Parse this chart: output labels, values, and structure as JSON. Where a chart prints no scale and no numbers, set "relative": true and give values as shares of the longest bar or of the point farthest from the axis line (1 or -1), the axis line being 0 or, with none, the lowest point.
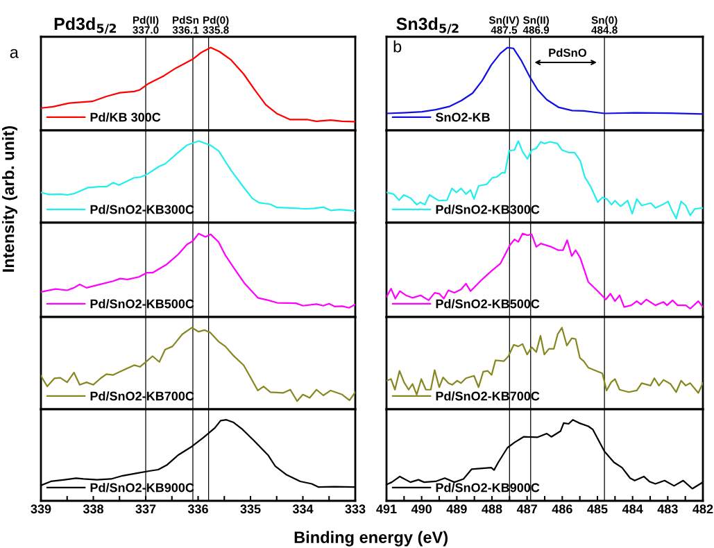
{
  "chart_data": [
    {
      "type": "line",
      "relative": true,
      "title": "Pd3d$_{5/2}$",
      "annotations": [
        "a"
      ],
      "legend": "bottom left",
      "tick_labels": false,
      "xlim": [
        339,
        333
      ],
      "x": [
        339.0,
        338.77,
        338.46,
        338.02,
        337.75,
        337.49,
        337.22,
        337.11,
        336.96,
        336.65,
        336.43,
        336.25,
        336.1,
        335.94,
        335.76,
        335.59,
        335.37,
        335.13,
        334.93,
        334.71,
        334.49,
        334.24,
        333.91,
        333.74,
        333.47,
        333.25,
        333.0
      ],
      "series": [
        {
          "name": "Pd/KB 300C",
          "color": "#ff0000",
          "values": [
            0.27,
            0.285,
            0.33,
            0.35,
            0.41,
            0.455,
            0.47,
            0.49,
            0.56,
            0.66,
            0.75,
            0.81,
            0.86,
            0.94,
            1.0,
            0.95,
            0.85,
            0.68,
            0.5,
            0.31,
            0.2,
            0.13,
            0.13,
            0.11,
            0.125,
            0.11,
            0.105
          ]
        }
      ],
      "ref_lines": [
        {
          "axis": "x",
          "value": 337.0,
          "label": "Pd(II)\n337.0",
          "color": "#000000"
        },
        {
          "axis": "x",
          "value": 336.1,
          "label": "PdSn\n336.1",
          "color": "#000000"
        },
        {
          "axis": "x",
          "value": 335.8,
          "label": "Pd(0)\n335.8",
          "color": "#000000"
        }
      ]
    },
    {
      "type": "line",
      "relative": true,
      "legend": "bottom left",
      "tick_labels": false,
      "xlim": [
        339,
        333
      ],
      "x": [
        339.0,
        338.85,
        338.63,
        338.5,
        338.37,
        338.1,
        337.88,
        337.75,
        337.62,
        337.51,
        337.22,
        337.09,
        336.98,
        336.74,
        336.63,
        336.38,
        336.21,
        335.99,
        335.77,
        335.61,
        335.37,
        335.15,
        334.97,
        334.84,
        334.62,
        334.49,
        334.22,
        333.96,
        333.78,
        333.61,
        333.47,
        333.3,
        333.0
      ],
      "series": [
        {
          "name": "Pd/SnO2-KB300C",
          "color": "#22eeee",
          "values": [
            0.37,
            0.345,
            0.35,
            0.34,
            0.355,
            0.43,
            0.44,
            0.44,
            0.49,
            0.46,
            0.55,
            0.56,
            0.59,
            0.69,
            0.72,
            0.86,
            0.95,
            1.0,
            0.95,
            0.88,
            0.64,
            0.45,
            0.3,
            0.245,
            0.225,
            0.185,
            0.18,
            0.17,
            0.175,
            0.19,
            0.15,
            0.16,
            0.145
          ]
        }
      ],
      "ref_lines": [
        {
          "axis": "x",
          "value": 337.0,
          "color": "#000000"
        },
        {
          "axis": "x",
          "value": 336.1,
          "color": "#000000"
        },
        {
          "axis": "x",
          "value": 335.8,
          "color": "#000000"
        }
      ]
    },
    {
      "type": "line",
      "relative": true,
      "ylabel": "Intensity (arb. unit)",
      "legend": "bottom left",
      "tick_labels": false,
      "xlim": [
        339,
        333
      ],
      "x": [
        339.0,
        338.72,
        338.5,
        338.37,
        338.26,
        338.13,
        337.88,
        337.62,
        337.49,
        337.35,
        337.13,
        336.98,
        336.87,
        336.6,
        336.38,
        336.21,
        336.1,
        335.99,
        335.86,
        335.76,
        335.61,
        335.48,
        335.33,
        335.11,
        334.86,
        334.66,
        334.49,
        334.13,
        334.0,
        333.74,
        333.61,
        333.5,
        333.39,
        333.25,
        333.12,
        333.0
      ],
      "series": [
        {
          "name": "Pd/SnO2-KB500C",
          "color": "#ff00ff",
          "values": [
            0.3,
            0.335,
            0.32,
            0.35,
            0.39,
            0.35,
            0.39,
            0.43,
            0.46,
            0.45,
            0.48,
            0.53,
            0.53,
            0.63,
            0.75,
            0.87,
            0.91,
            1.0,
            0.96,
            0.99,
            0.9,
            0.74,
            0.6,
            0.4,
            0.23,
            0.2,
            0.17,
            0.165,
            0.135,
            0.155,
            0.135,
            0.16,
            0.125,
            0.13,
            0.11,
            0.15
          ]
        }
      ],
      "ref_lines": [
        {
          "axis": "x",
          "value": 337.0,
          "color": "#000000"
        },
        {
          "axis": "x",
          "value": 336.1,
          "color": "#000000"
        },
        {
          "axis": "x",
          "value": 335.8,
          "color": "#000000"
        }
      ]
    },
    {
      "type": "line",
      "relative": true,
      "legend": "bottom left",
      "tick_labels": false,
      "xlim": [
        339,
        333
      ],
      "x": [
        339.0,
        338.88,
        338.74,
        338.63,
        338.5,
        338.37,
        338.26,
        338.13,
        338.0,
        337.86,
        337.75,
        337.62,
        337.49,
        337.22,
        337.11,
        336.98,
        336.87,
        336.74,
        336.63,
        336.49,
        336.3,
        336.12,
        335.99,
        335.88,
        335.77,
        335.61,
        335.48,
        335.33,
        335.13,
        334.99,
        334.86,
        334.75,
        334.62,
        334.38,
        334.24,
        334.11,
        334.0,
        333.87,
        333.74,
        333.61,
        333.47,
        333.25,
        333.11,
        333.0
      ],
      "series": [
        {
          "name": "Pd/SnO2-KB700C",
          "color": "#878720",
          "values": [
            0.41,
            0.28,
            0.38,
            0.385,
            0.33,
            0.45,
            0.3,
            0.33,
            0.3,
            0.38,
            0.43,
            0.42,
            0.46,
            0.54,
            0.52,
            0.59,
            0.65,
            0.58,
            0.73,
            0.77,
            0.92,
            1.0,
            0.95,
            0.97,
            0.94,
            0.83,
            0.77,
            0.66,
            0.54,
            0.38,
            0.23,
            0.28,
            0.21,
            0.2,
            0.24,
            0.1,
            0.18,
            0.14,
            0.24,
            0.17,
            0.23,
            0.18,
            0.11,
            0.21
          ]
        }
      ],
      "ref_lines": [
        {
          "axis": "x",
          "value": 337.0,
          "color": "#000000"
        },
        {
          "axis": "x",
          "value": 336.1,
          "color": "#000000"
        },
        {
          "axis": "x",
          "value": 335.8,
          "color": "#000000"
        }
      ]
    },
    {
      "type": "line",
      "relative": true,
      "xlabel": "Binding energy (eV)",
      "legend": "bottom left",
      "tick_labels": "x",
      "xlim": [
        339,
        333
      ],
      "xticks": [
        339,
        {
          "value": 338.5,
          "label": null
        },
        338,
        {
          "value": 337.5,
          "label": null
        },
        337,
        {
          "value": 336.5,
          "label": null
        },
        336,
        {
          "value": 335.5,
          "label": null
        },
        335,
        {
          "value": 334.5,
          "label": null
        },
        334,
        {
          "value": 333.5,
          "label": null
        },
        333
      ],
      "x": [
        339.0,
        338.81,
        338.55,
        338.33,
        338.19,
        337.93,
        337.66,
        337.44,
        337.13,
        336.91,
        336.76,
        336.6,
        336.38,
        336.12,
        335.9,
        335.68,
        335.57,
        335.46,
        335.33,
        335.15,
        334.93,
        334.66,
        334.53,
        334.31,
        334.05,
        333.83,
        333.7,
        333.39,
        333.0
      ],
      "series": [
        {
          "name": "Pd/SnO2-KB900C",
          "color": "#000000",
          "values": [
            0.19,
            0.24,
            0.26,
            0.28,
            0.27,
            0.26,
            0.27,
            0.31,
            0.345,
            0.37,
            0.385,
            0.44,
            0.565,
            0.67,
            0.78,
            0.9,
            0.99,
            1.0,
            0.97,
            0.88,
            0.74,
            0.56,
            0.43,
            0.32,
            0.24,
            0.21,
            0.17,
            0.175,
            0.17
          ]
        }
      ],
      "ref_lines": [
        {
          "axis": "x",
          "value": 337.0,
          "color": "#000000"
        },
        {
          "axis": "x",
          "value": 336.1,
          "color": "#000000"
        },
        {
          "axis": "x",
          "value": 335.8,
          "color": "#000000"
        }
      ]
    },
    {
      "type": "line",
      "relative": true,
      "title": "Sn3d$_{5/2}$",
      "annotations": [
        "b",
        "PdSnO"
      ],
      "legend": "bottom left",
      "tick_labels": false,
      "xlim": [
        491,
        482
      ],
      "x": [
        491.0,
        490.52,
        489.99,
        489.6,
        489.2,
        488.87,
        488.55,
        488.28,
        488.02,
        487.76,
        487.56,
        487.39,
        487.16,
        486.93,
        486.7,
        486.44,
        486.11,
        485.72,
        485.39,
        484.8,
        483.94,
        482.95,
        482.0
      ],
      "series": [
        {
          "name": "SnO2-KB",
          "color": "#1010e0",
          "values": [
            0.205,
            0.213,
            0.225,
            0.25,
            0.29,
            0.36,
            0.45,
            0.6,
            0.79,
            0.93,
            1.0,
            0.99,
            0.84,
            0.65,
            0.49,
            0.37,
            0.28,
            0.24,
            0.235,
            0.205,
            0.213,
            0.208,
            0.197
          ]
        }
      ],
      "ref_lines": [
        {
          "axis": "x",
          "value": 487.5,
          "label": "Sn(IV)\n487.5",
          "color": "#000000"
        },
        {
          "axis": "x",
          "value": 486.9,
          "label": "Sn(II)\n486.9",
          "color": "#000000"
        },
        {
          "axis": "x",
          "value": 484.8,
          "label": "Sn(0)\n484.8",
          "color": "#000000"
        }
      ]
    },
    {
      "type": "line",
      "relative": true,
      "legend": "bottom left",
      "tick_labels": false,
      "xlim": [
        491,
        482
      ],
      "x": [
        491.0,
        490.8,
        490.64,
        490.51,
        490.31,
        490.14,
        490.04,
        489.91,
        489.78,
        489.51,
        489.28,
        489.14,
        489.01,
        488.88,
        488.74,
        488.61,
        488.51,
        488.38,
        488.15,
        487.99,
        487.86,
        487.72,
        487.63,
        487.51,
        487.36,
        487.25,
        487.13,
        486.99,
        486.87,
        486.74,
        486.61,
        486.51,
        486.34,
        486.14,
        486.01,
        485.82,
        485.65,
        485.49,
        485.36,
        485.19,
        484.99,
        484.86,
        484.73,
        484.6,
        484.5,
        484.34,
        484.14,
        484.01,
        483.88,
        483.74,
        483.48,
        483.35,
        483.15,
        482.99,
        482.89,
        482.76,
        482.62,
        482.49,
        482.36,
        482.23,
        482.0
      ],
      "series": [
        {
          "name": "Pd/SnO2-KB300C",
          "color": "#22eeee",
          "values": [
            0.37,
            0.35,
            0.275,
            0.34,
            0.3,
            0.22,
            0.25,
            0.22,
            0.34,
            0.27,
            0.275,
            0.42,
            0.37,
            0.42,
            0.35,
            0.4,
            0.29,
            0.45,
            0.47,
            0.55,
            0.56,
            0.61,
            0.61,
            0.88,
            0.89,
            1.0,
            0.87,
            0.78,
            0.89,
            0.91,
            0.99,
            0.97,
            0.99,
            0.97,
            0.89,
            0.86,
            0.86,
            0.76,
            0.56,
            0.44,
            0.25,
            0.31,
            0.29,
            0.22,
            0.27,
            0.2,
            0.27,
            0.11,
            0.29,
            0.21,
            0.24,
            0.18,
            0.22,
            0.26,
            0.16,
            0.05,
            0.26,
            0.21,
            0.09,
            0.17,
            0.18
          ]
        }
      ],
      "ref_lines": [
        {
          "axis": "x",
          "value": 487.5,
          "color": "#000000"
        },
        {
          "axis": "x",
          "value": 486.9,
          "color": "#000000"
        },
        {
          "axis": "x",
          "value": 484.8,
          "color": "#000000"
        }
      ]
    },
    {
      "type": "line",
      "relative": true,
      "legend": "bottom left",
      "tick_labels": false,
      "xlim": [
        491,
        482
      ],
      "x": [
        491.0,
        490.87,
        490.75,
        490.62,
        490.45,
        490.26,
        490.03,
        489.8,
        489.63,
        489.5,
        489.37,
        489.24,
        489.07,
        488.88,
        488.74,
        488.61,
        488.28,
        488.02,
        487.76,
        487.49,
        487.36,
        487.25,
        487.13,
        487.0,
        486.87,
        486.74,
        486.61,
        486.31,
        486.11,
        485.98,
        485.86,
        485.73,
        485.62,
        485.49,
        485.26,
        484.99,
        484.76,
        484.63,
        484.5,
        484.37,
        484.24,
        484.04,
        483.88,
        483.76,
        483.61,
        483.35,
        483.12,
        483.02,
        482.86,
        482.72,
        482.49,
        482.36,
        482.13,
        482.0
      ],
      "series": [
        {
          "name": "Pd/SnO2-KB500C",
          "color": "#ff00ff",
          "values": [
            0.24,
            0.34,
            0.22,
            0.31,
            0.26,
            0.23,
            0.26,
            0.2,
            0.29,
            0.28,
            0.22,
            0.32,
            0.29,
            0.33,
            0.4,
            0.31,
            0.45,
            0.55,
            0.64,
            0.86,
            0.93,
            0.9,
            1.0,
            0.98,
            0.99,
            0.84,
            0.88,
            0.84,
            0.8,
            0.8,
            0.92,
            0.73,
            0.8,
            0.71,
            0.42,
            0.31,
            0.21,
            0.28,
            0.19,
            0.26,
            0.12,
            0.14,
            0.19,
            0.15,
            0.21,
            0.14,
            0.18,
            0.14,
            0.2,
            0.14,
            0.14,
            0.1,
            0.19,
            0.12
          ]
        }
      ],
      "ref_lines": [
        {
          "axis": "x",
          "value": 487.5,
          "color": "#000000"
        },
        {
          "axis": "x",
          "value": 486.9,
          "color": "#000000"
        },
        {
          "axis": "x",
          "value": 484.8,
          "color": "#000000"
        }
      ]
    },
    {
      "type": "line",
      "relative": true,
      "legend": "bottom left",
      "tick_labels": false,
      "xlim": [
        491,
        482
      ],
      "x": [
        491.0,
        490.87,
        490.76,
        490.63,
        490.5,
        490.37,
        490.26,
        490.14,
        490.01,
        489.88,
        489.74,
        489.63,
        489.5,
        489.39,
        489.24,
        489.13,
        488.99,
        488.88,
        488.74,
        488.51,
        488.38,
        488.25,
        488.12,
        488.01,
        487.9,
        487.66,
        487.53,
        487.38,
        487.25,
        487.13,
        487.0,
        486.87,
        486.74,
        486.62,
        486.51,
        486.38,
        486.24,
        486.13,
        486.01,
        485.87,
        485.73,
        485.62,
        485.5,
        485.39,
        485.26,
        484.86,
        484.74,
        484.61,
        484.5,
        484.37,
        484.11,
        483.88,
        483.74,
        483.49,
        483.38,
        483.25,
        483.12,
        482.92,
        482.76,
        482.62,
        482.49,
        482.36,
        482.13,
        482.0
      ],
      "series": [
        {
          "name": "Pd/SnO2-KB700C",
          "color": "#878720",
          "values": [
            0.35,
            0.37,
            0.24,
            0.47,
            0.33,
            0.24,
            0.31,
            0.18,
            0.37,
            0.24,
            0.24,
            0.48,
            0.27,
            0.39,
            0.32,
            0.3,
            0.35,
            0.32,
            0.38,
            0.41,
            0.27,
            0.46,
            0.47,
            0.42,
            0.6,
            0.59,
            0.65,
            0.79,
            0.77,
            0.8,
            0.67,
            0.76,
            0.7,
            0.9,
            0.67,
            0.74,
            0.74,
            0.92,
            1.0,
            0.78,
            0.87,
            0.86,
            0.63,
            0.59,
            0.51,
            0.44,
            0.23,
            0.33,
            0.37,
            0.24,
            0.21,
            0.23,
            0.32,
            0.29,
            0.38,
            0.29,
            0.36,
            0.31,
            0.21,
            0.35,
            0.29,
            0.32,
            0.2,
            0.32
          ]
        }
      ],
      "ref_lines": [
        {
          "axis": "x",
          "value": 487.5,
          "color": "#000000"
        },
        {
          "axis": "x",
          "value": 486.9,
          "color": "#000000"
        },
        {
          "axis": "x",
          "value": 484.8,
          "color": "#000000"
        }
      ]
    },
    {
      "type": "line",
      "relative": true,
      "legend": "bottom left",
      "tick_labels": "x",
      "xlim": [
        491,
        482
      ],
      "xticks": [
        491,
        {
          "value": 490.5,
          "label": null
        },
        490,
        {
          "value": 489.5,
          "label": null
        },
        489,
        {
          "value": 488.5,
          "label": null
        },
        488,
        {
          "value": 487.5,
          "label": null
        },
        487,
        {
          "value": 486.5,
          "label": null
        },
        486,
        {
          "value": 485.5,
          "label": null
        },
        485,
        {
          "value": 484.5,
          "label": null
        },
        484,
        {
          "value": 483.5,
          "label": null
        },
        483,
        {
          "value": 482.5,
          "label": null
        },
        482
      ],
      "x": [
        491.0,
        490.85,
        490.62,
        490.32,
        490.09,
        489.93,
        489.6,
        489.34,
        489.07,
        488.81,
        488.58,
        488.02,
        487.94,
        487.82,
        487.56,
        487.36,
        487.1,
        486.7,
        486.44,
        486.31,
        486.05,
        485.96,
        485.82,
        485.7,
        485.52,
        485.26,
        485.13,
        484.8,
        484.53,
        484.3,
        484.07,
        483.94,
        483.68,
        483.51,
        483.35,
        483.09,
        482.82,
        482.56,
        482.3,
        482.0
      ],
      "series": [
        {
          "name": "Pd/SnO2-KB900C",
          "color": "#000000",
          "values": [
            0.2,
            0.23,
            0.3,
            0.23,
            0.26,
            0.23,
            0.24,
            0.28,
            0.23,
            0.27,
            0.39,
            0.41,
            0.38,
            0.475,
            0.655,
            0.72,
            0.79,
            0.785,
            0.83,
            0.79,
            0.86,
            0.96,
            0.95,
            1.0,
            0.96,
            0.92,
            0.88,
            0.61,
            0.475,
            0.41,
            0.28,
            0.25,
            0.3,
            0.235,
            0.21,
            0.25,
            0.185,
            0.25,
            0.15,
            0.23
          ]
        }
      ],
      "ref_lines": [
        {
          "axis": "x",
          "value": 487.5,
          "color": "#000000"
        },
        {
          "axis": "x",
          "value": 486.9,
          "color": "#000000"
        },
        {
          "axis": "x",
          "value": 484.8,
          "color": "#000000"
        }
      ]
    }
  ]
}
